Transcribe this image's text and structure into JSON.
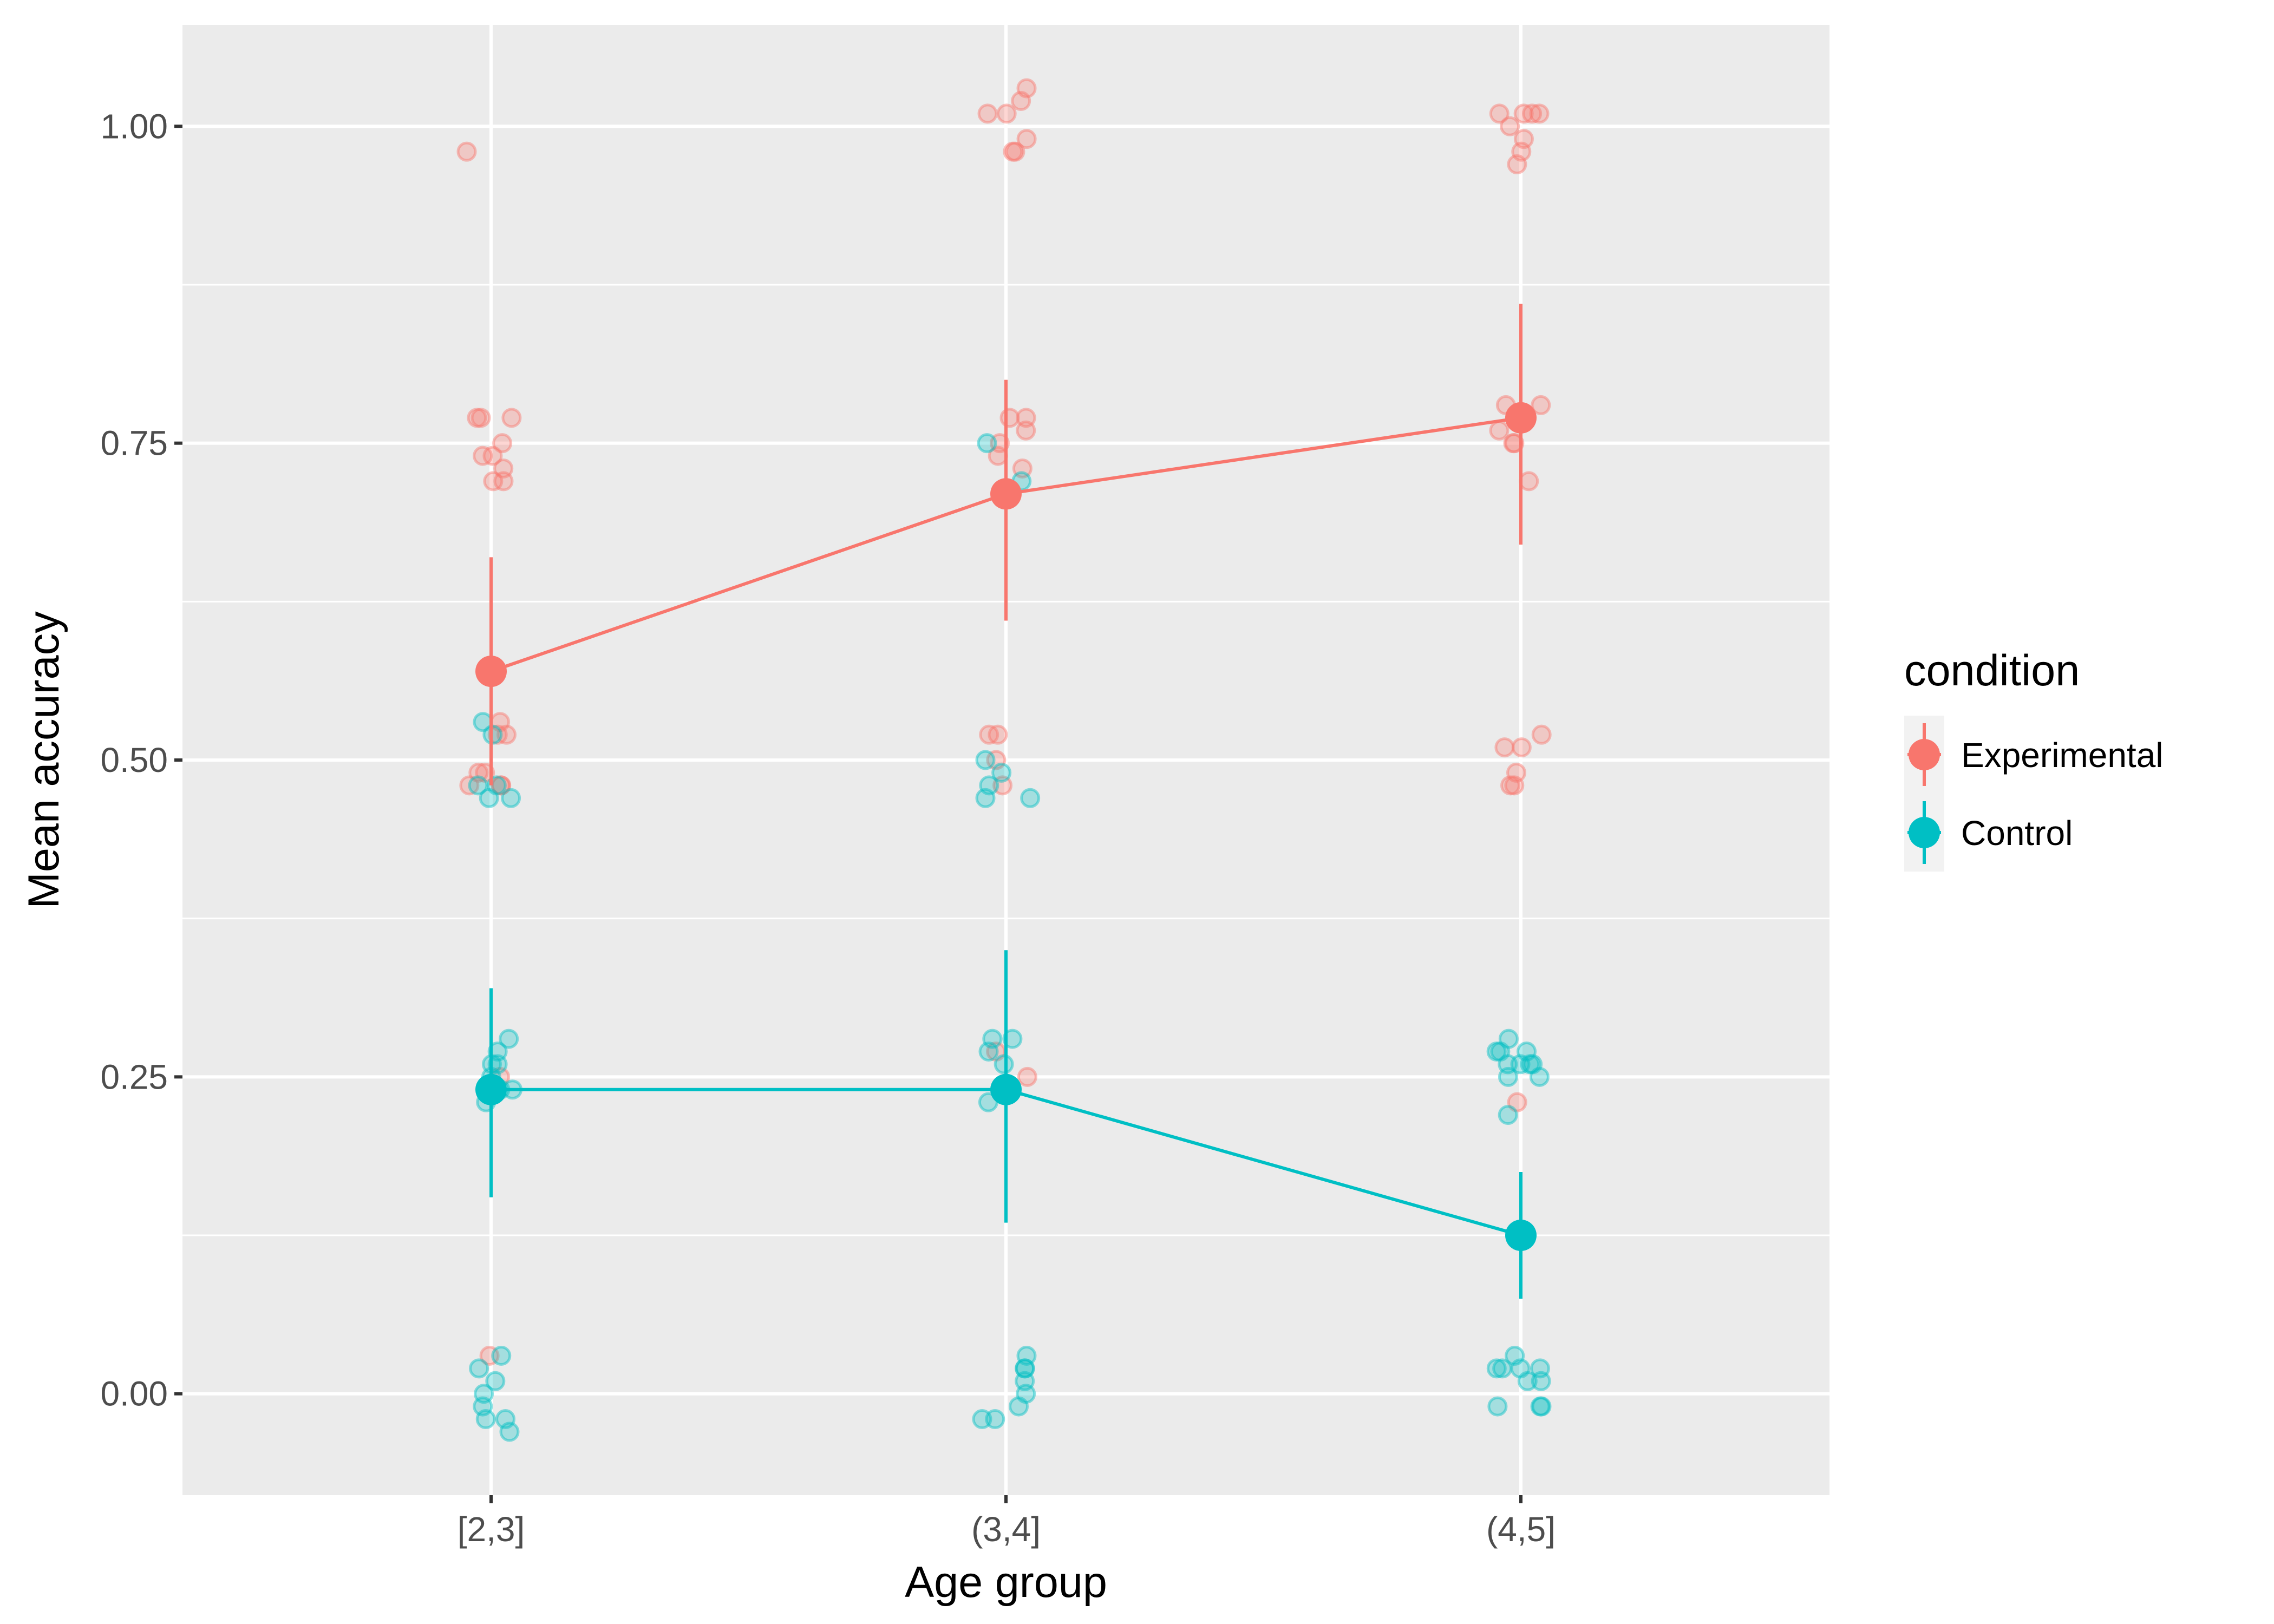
{
  "chart_data": {
    "type": "line",
    "xlabel": "Age group",
    "ylabel": "Mean accuracy",
    "categories": [
      "[2,3]",
      "(3,4]",
      "(4,5]"
    ],
    "ylim": [
      -0.08,
      1.08
    ],
    "yticks": [
      0.0,
      0.25,
      0.5,
      0.75,
      1.0
    ],
    "ytick_labels": [
      "0.00",
      "0.25",
      "0.50",
      "0.75",
      "1.00"
    ],
    "grid": true,
    "legend": {
      "title": "condition",
      "position": "right"
    },
    "series": [
      {
        "name": "Experimental",
        "color": "#F8766D",
        "means": [
          0.57,
          0.71,
          0.77
        ],
        "error_low": [
          0.48,
          0.61,
          0.67
        ],
        "error_high": [
          0.66,
          0.8,
          0.86
        ],
        "points": [
          [
            0,
            0.98
          ],
          [
            0,
            0.77
          ],
          [
            0,
            0.77
          ],
          [
            0,
            0.77
          ],
          [
            0,
            0.75
          ],
          [
            0,
            0.74
          ],
          [
            0,
            0.74
          ],
          [
            0,
            0.73
          ],
          [
            0,
            0.72
          ],
          [
            0,
            0.72
          ],
          [
            0,
            0.53
          ],
          [
            0,
            0.52
          ],
          [
            0,
            0.52
          ],
          [
            0,
            0.49
          ],
          [
            0,
            0.49
          ],
          [
            0,
            0.48
          ],
          [
            0,
            0.48
          ],
          [
            0,
            0.48
          ],
          [
            0,
            0.25
          ],
          [
            0,
            0.03
          ],
          [
            1,
            1.03
          ],
          [
            1,
            1.02
          ],
          [
            1,
            1.01
          ],
          [
            1,
            1.01
          ],
          [
            1,
            0.99
          ],
          [
            1,
            0.98
          ],
          [
            1,
            0.98
          ],
          [
            1,
            0.77
          ],
          [
            1,
            0.77
          ],
          [
            1,
            0.76
          ],
          [
            1,
            0.75
          ],
          [
            1,
            0.74
          ],
          [
            1,
            0.73
          ],
          [
            1,
            0.52
          ],
          [
            1,
            0.52
          ],
          [
            1,
            0.5
          ],
          [
            1,
            0.48
          ],
          [
            1,
            0.27
          ],
          [
            1,
            0.25
          ],
          [
            2,
            1.01
          ],
          [
            2,
            1.01
          ],
          [
            2,
            1.01
          ],
          [
            2,
            1.01
          ],
          [
            2,
            1.0
          ],
          [
            2,
            0.99
          ],
          [
            2,
            0.98
          ],
          [
            2,
            0.97
          ],
          [
            2,
            0.78
          ],
          [
            2,
            0.78
          ],
          [
            2,
            0.76
          ],
          [
            2,
            0.75
          ],
          [
            2,
            0.75
          ],
          [
            2,
            0.72
          ],
          [
            2,
            0.52
          ],
          [
            2,
            0.51
          ],
          [
            2,
            0.51
          ],
          [
            2,
            0.49
          ],
          [
            2,
            0.48
          ],
          [
            2,
            0.48
          ],
          [
            2,
            0.23
          ]
        ]
      },
      {
        "name": "Control",
        "color": "#00BFC4",
        "means": [
          0.24,
          0.24,
          0.125
        ],
        "error_low": [
          0.155,
          0.135,
          0.075
        ],
        "error_high": [
          0.32,
          0.35,
          0.175
        ],
        "points": [
          [
            0,
            0.53
          ],
          [
            0,
            0.52
          ],
          [
            0,
            0.48
          ],
          [
            0,
            0.48
          ],
          [
            0,
            0.47
          ],
          [
            0,
            0.47
          ],
          [
            0,
            0.28
          ],
          [
            0,
            0.27
          ],
          [
            0,
            0.26
          ],
          [
            0,
            0.26
          ],
          [
            0,
            0.25
          ],
          [
            0,
            0.24
          ],
          [
            0,
            0.24
          ],
          [
            0,
            0.23
          ],
          [
            0,
            0.03
          ],
          [
            0,
            0.02
          ],
          [
            0,
            0.01
          ],
          [
            0,
            0.0
          ],
          [
            0,
            -0.01
          ],
          [
            0,
            -0.02
          ],
          [
            0,
            -0.02
          ],
          [
            0,
            -0.03
          ],
          [
            1,
            0.75
          ],
          [
            1,
            0.72
          ],
          [
            1,
            0.5
          ],
          [
            1,
            0.49
          ],
          [
            1,
            0.48
          ],
          [
            1,
            0.47
          ],
          [
            1,
            0.47
          ],
          [
            1,
            0.28
          ],
          [
            1,
            0.28
          ],
          [
            1,
            0.27
          ],
          [
            1,
            0.26
          ],
          [
            1,
            0.24
          ],
          [
            1,
            0.23
          ],
          [
            1,
            0.03
          ],
          [
            1,
            0.02
          ],
          [
            1,
            0.02
          ],
          [
            1,
            0.01
          ],
          [
            1,
            0.0
          ],
          [
            1,
            -0.01
          ],
          [
            1,
            -0.02
          ],
          [
            1,
            -0.02
          ],
          [
            2,
            0.28
          ],
          [
            2,
            0.27
          ],
          [
            2,
            0.27
          ],
          [
            2,
            0.27
          ],
          [
            2,
            0.26
          ],
          [
            2,
            0.26
          ],
          [
            2,
            0.26
          ],
          [
            2,
            0.26
          ],
          [
            2,
            0.25
          ],
          [
            2,
            0.25
          ],
          [
            2,
            0.22
          ],
          [
            2,
            0.03
          ],
          [
            2,
            0.02
          ],
          [
            2,
            0.02
          ],
          [
            2,
            0.02
          ],
          [
            2,
            0.02
          ],
          [
            2,
            0.01
          ],
          [
            2,
            0.01
          ],
          [
            2,
            -0.01
          ],
          [
            2,
            -0.01
          ],
          [
            2,
            -0.01
          ]
        ]
      }
    ]
  }
}
